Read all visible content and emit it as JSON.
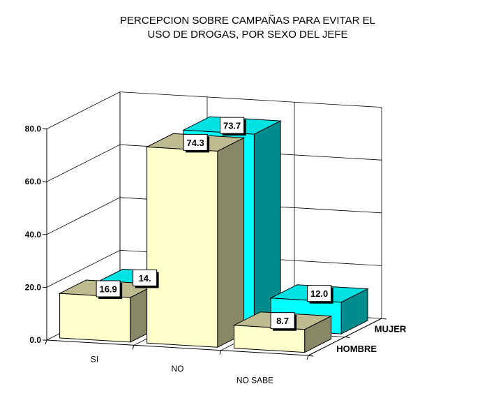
{
  "chart_data": {
    "type": "bar",
    "title_lines": [
      "PERCEPCION SOBRE CAMPAÑAS PARA EVITAR EL",
      "USO DE DROGAS, POR SEXO DEL JEFE"
    ],
    "categories": [
      "SI",
      "NO",
      "NO SABE"
    ],
    "series": [
      {
        "name": "HOMBRE",
        "values": [
          16.9,
          74.3,
          8.7
        ],
        "colors": {
          "front": "#FFFFCC",
          "top": "#BDBB8F",
          "side": "#888866"
        }
      },
      {
        "name": "MUJER",
        "values": [
          14.0,
          73.7,
          12.0
        ],
        "colors": {
          "front": "#00FFFF",
          "top": "#00E2E2",
          "side": "#008C8C"
        }
      }
    ],
    "data_labels": [
      [
        "16.9",
        "74.3",
        "8.7"
      ],
      [
        "14.",
        "73.7",
        "12.0"
      ]
    ],
    "y_ticks": [
      "0.0",
      "20.0",
      "40.0",
      "60.0",
      "80.0"
    ],
    "y_tick_values": [
      0,
      20,
      40,
      60,
      80
    ],
    "ylim": [
      0,
      80
    ],
    "grid": true,
    "legend": "depth-axis labels on the right"
  }
}
